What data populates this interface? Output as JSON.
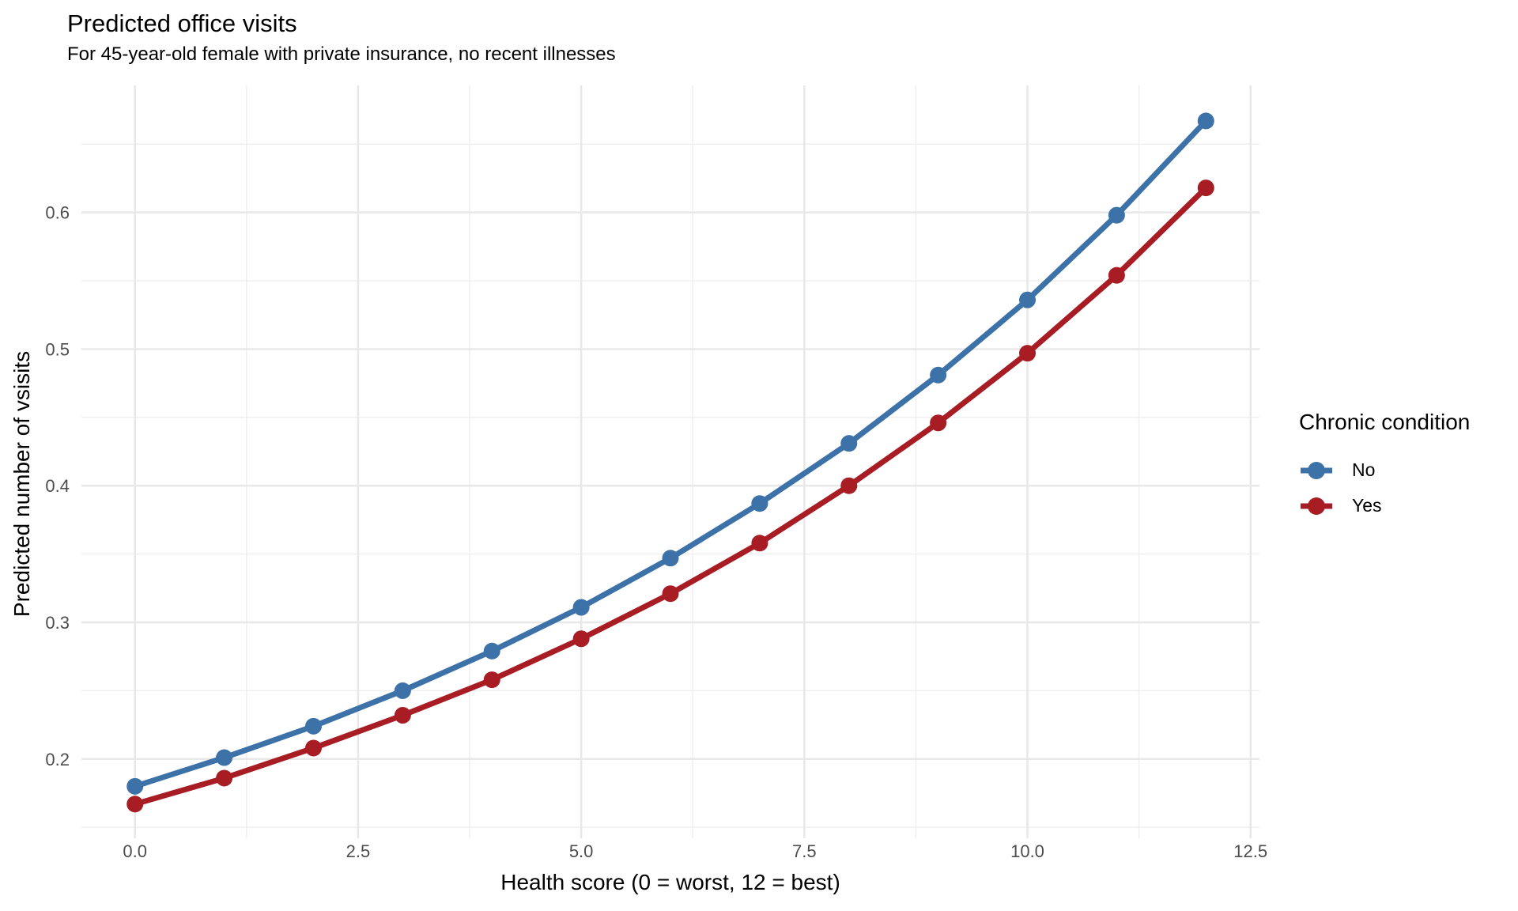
{
  "chart_data": {
    "type": "line",
    "title": "Predicted office visits",
    "subtitle": "For 45-year-old female with private insurance, no recent illnesses",
    "xlabel": "Health score (0 = worst, 12 = best)",
    "ylabel": "Predicted number of vsisits",
    "legend_title": "Chronic condition",
    "legend_position": "right",
    "grid": "major+minor",
    "background": "#ffffff",
    "grid_major_color": "#e8e8e8",
    "grid_minor_color": "#efefef",
    "x": [
      0,
      1,
      2,
      3,
      4,
      5,
      6,
      7,
      8,
      9,
      10,
      11,
      12
    ],
    "series": [
      {
        "name": "No",
        "color": "#3c72a8",
        "values": [
          0.18,
          0.201,
          0.224,
          0.25,
          0.279,
          0.311,
          0.347,
          0.387,
          0.431,
          0.481,
          0.536,
          0.598,
          0.667
        ]
      },
      {
        "name": "Yes",
        "color": "#a81c24",
        "values": [
          0.167,
          0.186,
          0.208,
          0.232,
          0.258,
          0.288,
          0.321,
          0.358,
          0.4,
          0.446,
          0.497,
          0.554,
          0.618
        ]
      }
    ],
    "xlim": [
      -0.6,
      12.6
    ],
    "ylim": [
      0.142,
      0.693
    ],
    "x_ticks": [
      {
        "v": 0,
        "label": "0.0"
      },
      {
        "v": 2.5,
        "label": "2.5"
      },
      {
        "v": 5,
        "label": "5.0"
      },
      {
        "v": 7.5,
        "label": "7.5"
      },
      {
        "v": 10,
        "label": "10.0"
      },
      {
        "v": 12.5,
        "label": "12.5"
      }
    ],
    "y_ticks": [
      {
        "v": 0.2,
        "label": "0.2"
      },
      {
        "v": 0.3,
        "label": "0.3"
      },
      {
        "v": 0.4,
        "label": "0.4"
      },
      {
        "v": 0.5,
        "label": "0.5"
      },
      {
        "v": 0.6,
        "label": "0.6"
      }
    ],
    "x_minor": [
      1.25,
      3.75,
      6.25,
      8.75,
      11.25
    ],
    "y_minor": [
      0.15,
      0.25,
      0.35,
      0.45,
      0.55,
      0.65
    ]
  }
}
